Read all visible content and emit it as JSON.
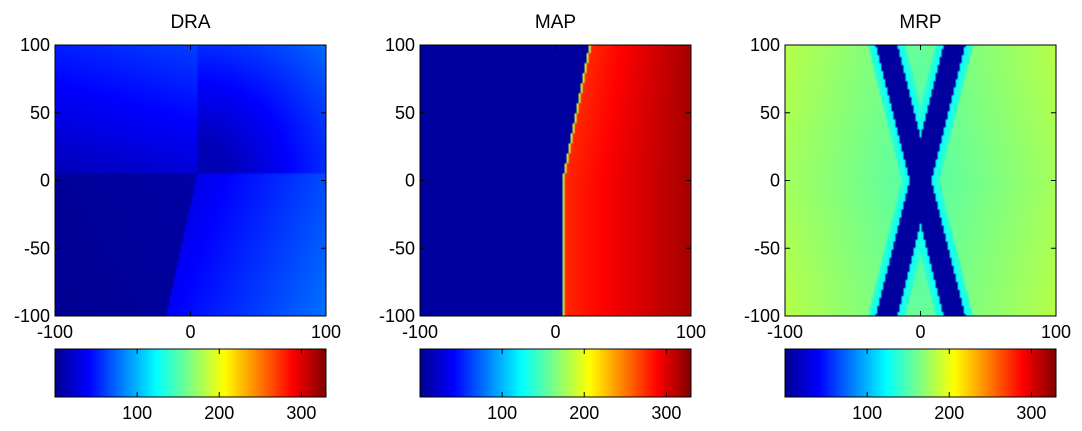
{
  "chart_data": [
    {
      "type": "heatmap",
      "title": "DRA",
      "xlim": [
        -100,
        100
      ],
      "ylim": [
        -100,
        100
      ],
      "x_ticks": [
        -100,
        0,
        100
      ],
      "y_ticks": [
        100,
        50,
        0,
        -50,
        -100
      ],
      "colormap": "jet",
      "colorbar_ticks": [
        100,
        200,
        300
      ],
      "colorbar_range": [
        0,
        330
      ],
      "field": {
        "kind": "corner-distance",
        "center": [
          5,
          5
        ],
        "seam_from": [
          5,
          5
        ],
        "seam_to": [
          -18,
          -100
        ],
        "scale": 0.52,
        "offset": 6
      }
    },
    {
      "type": "heatmap",
      "title": "MAP",
      "xlim": [
        -100,
        100
      ],
      "ylim": [
        -100,
        100
      ],
      "x_ticks": [
        -100,
        0,
        100
      ],
      "y_ticks": [
        100,
        50,
        0,
        -50,
        -100
      ],
      "colormap": "jet",
      "colorbar_ticks": [
        100,
        200,
        300
      ],
      "colorbar_range": [
        0,
        330
      ],
      "field": {
        "kind": "step",
        "boundary": [
          [
            5,
            -100
          ],
          [
            5,
            0
          ],
          [
            25,
            100
          ]
        ],
        "left_value": 10,
        "right_value_at_boundary": 275,
        "right_value_at_xmax": 318
      }
    },
    {
      "type": "heatmap",
      "title": "MRP",
      "xlim": [
        -100,
        100
      ],
      "ylim": [
        -100,
        100
      ],
      "x_ticks": [
        -100,
        0,
        100
      ],
      "y_ticks": [
        100,
        50,
        0,
        -50,
        -100
      ],
      "colormap": "jet",
      "colorbar_ticks": [
        100,
        200,
        300
      ],
      "colorbar_range": [
        0,
        330
      ],
      "field": {
        "kind": "x-cross",
        "bands": [
          [
            [
              -25,
              100
            ],
            [
              25,
              -100
            ]
          ],
          [
            [
              25,
              100
            ],
            [
              -25,
              -100
            ]
          ]
        ],
        "band_half_width": 8,
        "band_value": 10,
        "halo_value": 125,
        "halo_width": 6,
        "edge_value": 180,
        "center_value": 150
      }
    }
  ]
}
